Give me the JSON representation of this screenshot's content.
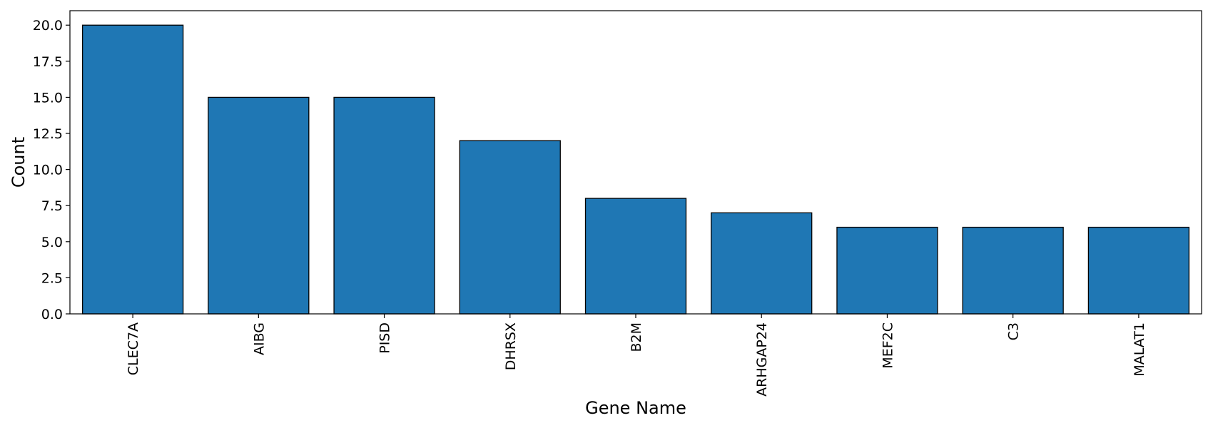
{
  "chart_data": {
    "type": "bar",
    "title": "",
    "xlabel": "Gene Name",
    "ylabel": "Count",
    "categories": [
      "CLEC7A",
      "AIBG",
      "PISD",
      "DHRSX",
      "B2M",
      "ARHGAP24",
      "MEF2C",
      "C3",
      "MALAT1"
    ],
    "values": [
      20,
      15,
      15,
      12,
      8,
      7,
      6,
      6,
      6
    ],
    "ylim": [
      0,
      21
    ],
    "yticks": [
      "0.0",
      "2.5",
      "5.0",
      "7.5",
      "10.0",
      "12.5",
      "15.0",
      "17.5",
      "20.0"
    ],
    "grid": false,
    "legend": "none",
    "colors": {
      "bar": "#1f77b4",
      "edge": "#000000"
    }
  }
}
